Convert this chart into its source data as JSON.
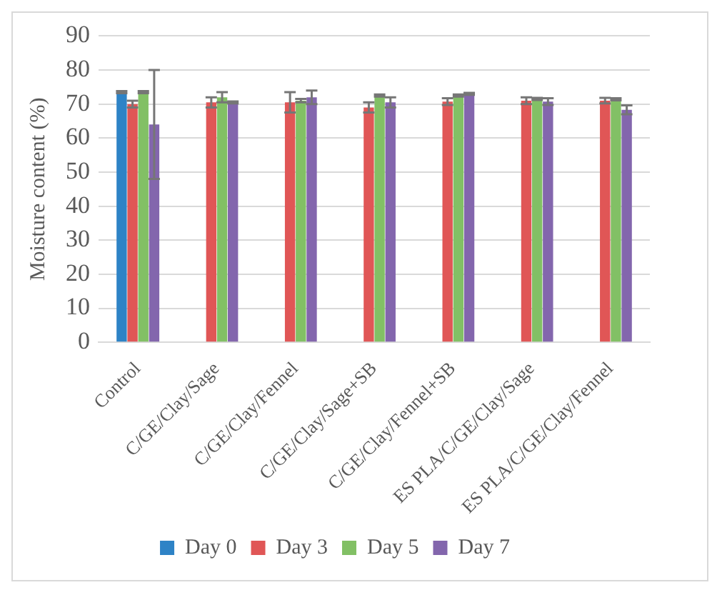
{
  "chart_data": {
    "type": "bar",
    "ylabel": "Moisture content (%)",
    "categories": [
      "Control",
      "C/GE/Clay/Sage",
      "C/GE/Clay/Fennel",
      "C/GE/Clay/Sage+SB",
      "C/GE/Clay/Fennel+SB",
      "ES PLA/C/GE/Clay/Sage",
      "ES PLA/C/GE/Clay/Fennel"
    ],
    "series": [
      {
        "name": "Day 0",
        "color": "#2e83c6",
        "values": [
          73.5,
          null,
          null,
          null,
          null,
          null,
          null
        ],
        "errors": [
          0.3,
          null,
          null,
          null,
          null,
          null,
          null
        ]
      },
      {
        "name": "Day 3",
        "color": "#e05656",
        "values": [
          70,
          70.5,
          70.5,
          69,
          70.7,
          71,
          71
        ],
        "errors": [
          1,
          1.5,
          3,
          1.5,
          1,
          1,
          0.8
        ]
      },
      {
        "name": "Day 5",
        "color": "#82c065",
        "values": [
          73.5,
          72,
          71,
          72.5,
          72.5,
          71.5,
          71.4
        ],
        "errors": [
          0.3,
          1.5,
          0.5,
          0.3,
          0.3,
          0.3,
          0.3
        ]
      },
      {
        "name": "Day 7",
        "color": "#8366ad",
        "values": [
          64,
          70.5,
          72,
          70.5,
          73,
          70.7,
          68.3
        ],
        "errors": [
          16,
          0.3,
          2,
          1.5,
          0.3,
          1,
          1.3
        ]
      }
    ],
    "ylim": [
      0,
      90
    ],
    "yticks": [
      0,
      10,
      20,
      30,
      40,
      50,
      60,
      70,
      80,
      90
    ],
    "grid": "y",
    "legend": "bottom"
  }
}
